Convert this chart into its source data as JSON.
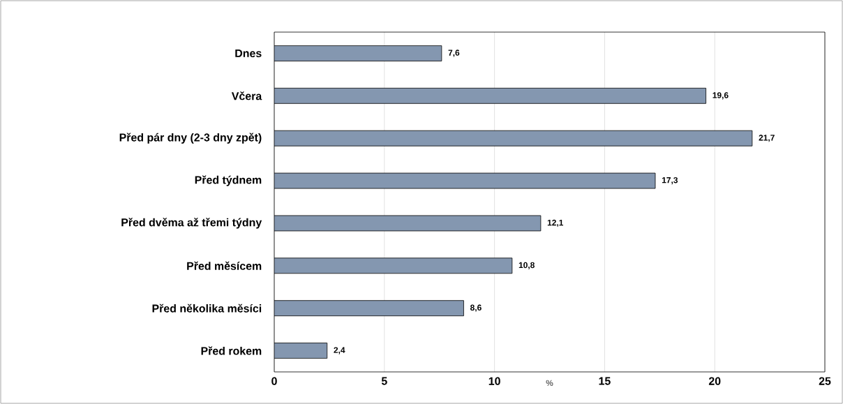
{
  "chart_data": {
    "type": "bar",
    "orientation": "horizontal",
    "xlabel": "%",
    "categories": [
      "Dnes",
      "Včera",
      "Před pár dny (2-3 dny zpět)",
      "Před týdnem",
      "Před dvěma až třemi týdny",
      "Před měsícem",
      "Před několika měsíci",
      "Před rokem"
    ],
    "values": [
      7.6,
      19.6,
      21.7,
      17.3,
      12.1,
      10.8,
      8.6,
      2.4
    ],
    "value_labels": [
      "7,6",
      "19,6",
      "21,7",
      "17,3",
      "12,1",
      "10,8",
      "8,6",
      "2,4"
    ],
    "color": "#8497b0",
    "xlim": [
      0,
      25
    ],
    "xticks": [
      0,
      5,
      10,
      15,
      20,
      25
    ],
    "grid": "x"
  }
}
